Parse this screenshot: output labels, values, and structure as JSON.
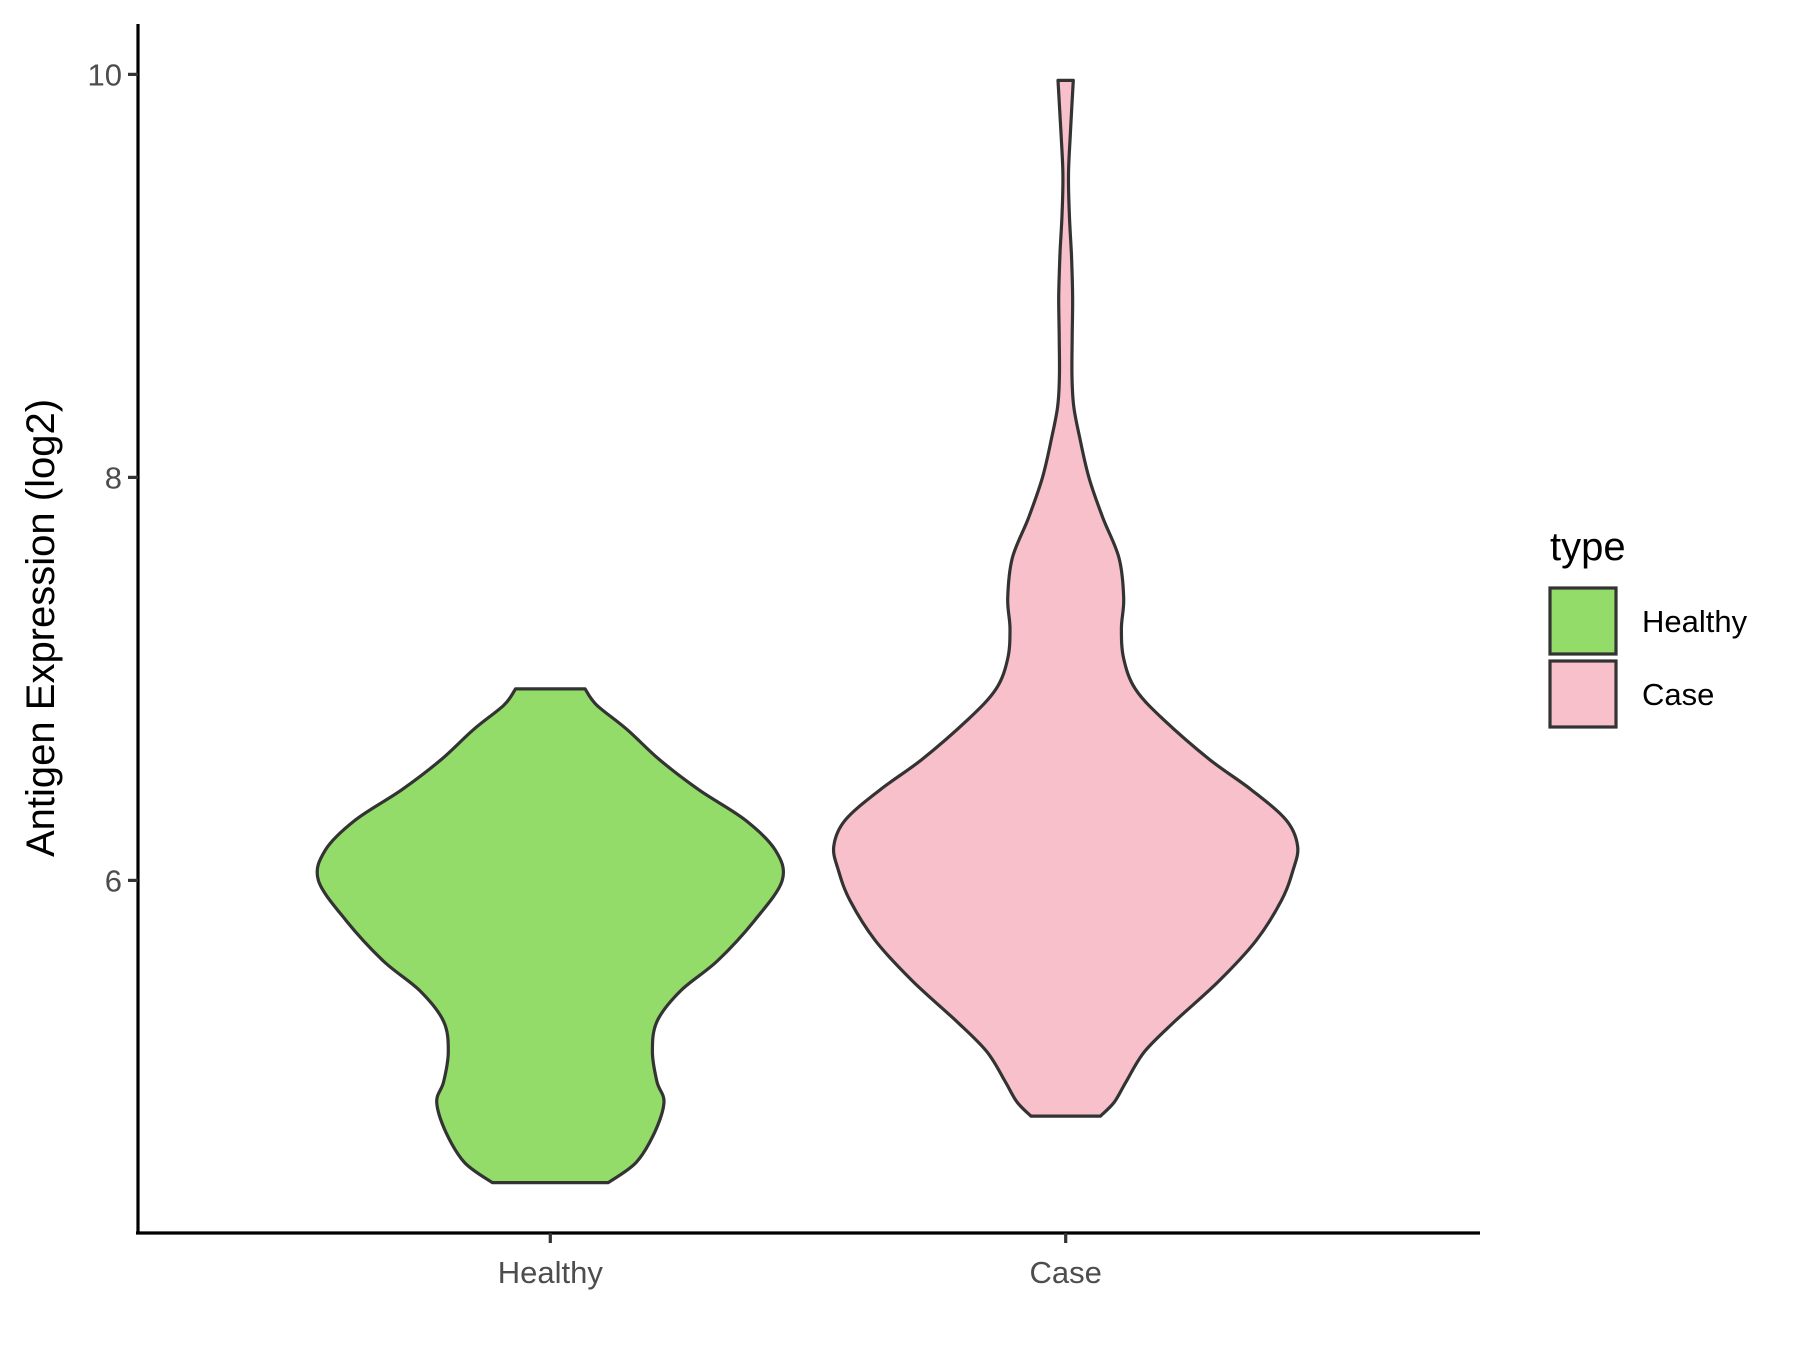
{
  "chart_data": {
    "type": "violin",
    "ylabel": "Antigen Expression (log2)",
    "xlabel": "",
    "categories": [
      "Healthy",
      "Case"
    ],
    "y_ticks": [
      6,
      8,
      10
    ],
    "ylim": [
      4.25,
      10.25
    ],
    "grid": false,
    "legend": {
      "title": "type",
      "position": "right",
      "entries": [
        {
          "label": "Healthy",
          "color": "#93dc6a"
        },
        {
          "label": "Case",
          "color": "#f7c0cb"
        }
      ]
    },
    "series": [
      {
        "category": "Healthy",
        "color": "#93dc6a",
        "min": 4.5,
        "max": 6.95,
        "density": [
          [
            4.5,
            0.25
          ],
          [
            4.6,
            0.37
          ],
          [
            4.75,
            0.45
          ],
          [
            4.9,
            0.49
          ],
          [
            5.0,
            0.46
          ],
          [
            5.15,
            0.44
          ],
          [
            5.3,
            0.46
          ],
          [
            5.45,
            0.56
          ],
          [
            5.6,
            0.72
          ],
          [
            5.8,
            0.88
          ],
          [
            6.0,
            1.0
          ],
          [
            6.15,
            0.97
          ],
          [
            6.3,
            0.84
          ],
          [
            6.45,
            0.64
          ],
          [
            6.6,
            0.47
          ],
          [
            6.75,
            0.33
          ],
          [
            6.87,
            0.2
          ],
          [
            6.95,
            0.15
          ]
        ]
      },
      {
        "category": "Case",
        "color": "#f7c0cb",
        "min": 4.83,
        "max": 9.97,
        "density": [
          [
            4.83,
            0.15
          ],
          [
            4.9,
            0.21
          ],
          [
            5.0,
            0.26
          ],
          [
            5.15,
            0.34
          ],
          [
            5.3,
            0.47
          ],
          [
            5.5,
            0.66
          ],
          [
            5.7,
            0.82
          ],
          [
            5.9,
            0.93
          ],
          [
            6.05,
            0.98
          ],
          [
            6.17,
            1.0
          ],
          [
            6.3,
            0.95
          ],
          [
            6.45,
            0.8
          ],
          [
            6.6,
            0.62
          ],
          [
            6.8,
            0.42
          ],
          [
            6.95,
            0.3
          ],
          [
            7.1,
            0.25
          ],
          [
            7.25,
            0.24
          ],
          [
            7.4,
            0.25
          ],
          [
            7.6,
            0.23
          ],
          [
            7.8,
            0.16
          ],
          [
            8.0,
            0.1
          ],
          [
            8.2,
            0.06
          ],
          [
            8.35,
            0.035
          ],
          [
            8.5,
            0.027
          ],
          [
            8.7,
            0.028
          ],
          [
            8.9,
            0.03
          ],
          [
            9.1,
            0.025
          ],
          [
            9.3,
            0.016
          ],
          [
            9.5,
            0.012
          ],
          [
            9.7,
            0.02
          ],
          [
            9.97,
            0.033
          ]
        ]
      }
    ]
  }
}
